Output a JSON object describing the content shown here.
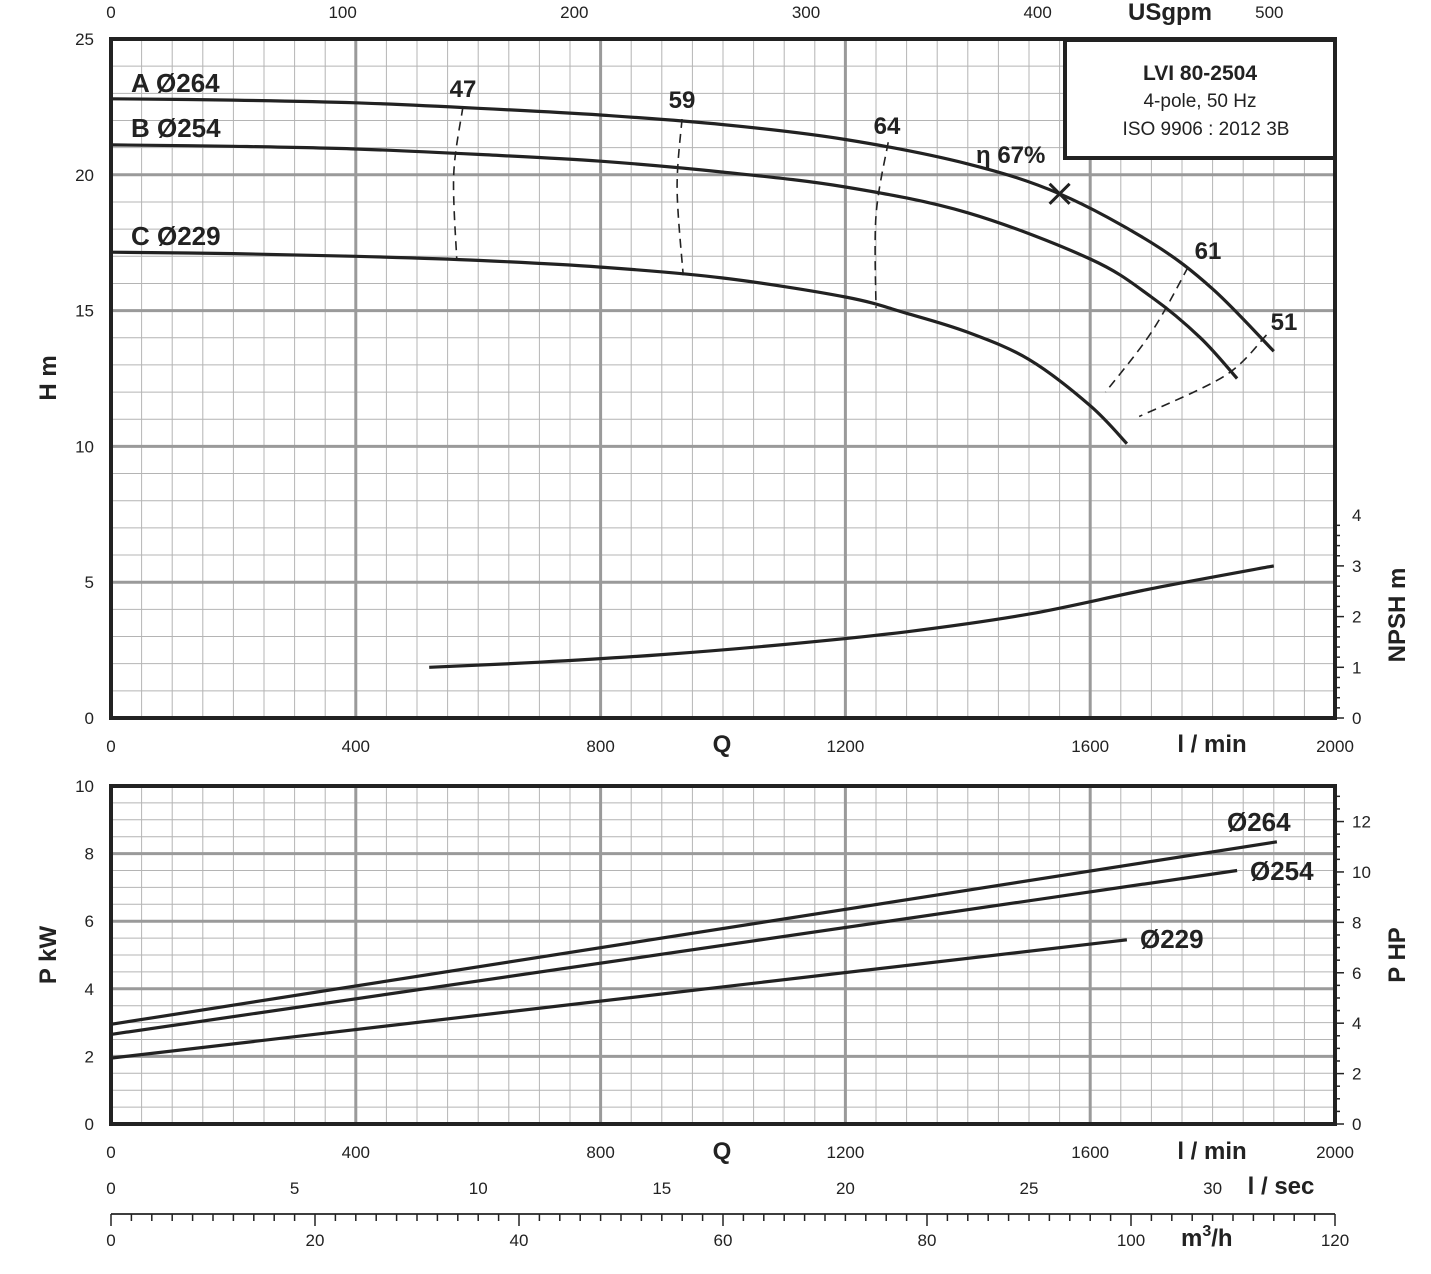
{
  "chart_data": [
    {
      "type": "line",
      "subplot": "head",
      "title_box": {
        "model": "LVI 80-2504",
        "line2": "4-pole, 50 Hz",
        "line3": "ISO 9906 : 2012 3B"
      },
      "xlabel": "Q",
      "xunit": "l / min",
      "xlim": [
        0,
        2000
      ],
      "xticks": [
        "0",
        "400",
        "800",
        "1200",
        "1600",
        "2000"
      ],
      "top_axis": {
        "unit": "USgpm",
        "ticks": [
          "0",
          "100",
          "200",
          "300",
          "400",
          "500"
        ],
        "values": [
          0,
          100,
          200,
          300,
          400,
          500
        ]
      },
      "ylabel": "H m",
      "ylim": [
        0,
        25
      ],
      "yticks": [
        "0",
        "5",
        "10",
        "15",
        "20",
        "25"
      ],
      "right_axis": {
        "label": "NPSH m",
        "ticks": [
          "0",
          "1",
          "2",
          "3",
          "4"
        ],
        "values": [
          0,
          1,
          2,
          3,
          4
        ]
      },
      "grid": true,
      "series": [
        {
          "name": "A Ø264",
          "x": [
            0,
            200,
            400,
            600,
            800,
            1000,
            1200,
            1400,
            1550,
            1700,
            1800,
            1900
          ],
          "y": [
            22.8,
            22.75,
            22.65,
            22.45,
            22.2,
            21.85,
            21.3,
            20.4,
            19.3,
            17.5,
            15.8,
            13.5
          ]
        },
        {
          "name": "B Ø254",
          "x": [
            0,
            200,
            400,
            600,
            800,
            1000,
            1200,
            1400,
            1600,
            1700,
            1780,
            1840
          ],
          "y": [
            21.1,
            21.05,
            20.95,
            20.75,
            20.5,
            20.1,
            19.55,
            18.6,
            16.9,
            15.5,
            14.0,
            12.5
          ]
        },
        {
          "name": "C Ø229",
          "x": [
            0,
            200,
            400,
            600,
            800,
            1000,
            1200,
            1300,
            1400,
            1500,
            1600,
            1660
          ],
          "y": [
            17.15,
            17.1,
            17.0,
            16.85,
            16.6,
            16.2,
            15.5,
            14.9,
            14.2,
            13.2,
            11.5,
            10.1
          ]
        },
        {
          "name": "NPSH",
          "axis": "right",
          "x": [
            520,
            700,
            900,
            1100,
            1300,
            1500,
            1700,
            1900
          ],
          "y": [
            1.0,
            1.1,
            1.25,
            1.45,
            1.7,
            2.05,
            2.55,
            3.0
          ]
        }
      ],
      "efficiency_labels": [
        "47",
        "59",
        "64",
        "61",
        "51"
      ],
      "efficiency_lines": [
        {
          "label": "47",
          "x": [
            575,
            560,
            565
          ],
          "y": [
            22.5,
            20.0,
            16.85
          ]
        },
        {
          "label": "59",
          "x": [
            933,
            925,
            935
          ],
          "y": [
            22.05,
            19.5,
            16.3
          ]
        },
        {
          "label": "64",
          "x": [
            1270,
            1250,
            1250
          ],
          "y": [
            21.2,
            18.5,
            15.1
          ]
        },
        {
          "label": "61",
          "x": [
            1760,
            1700,
            1625
          ],
          "y": [
            16.6,
            14.2,
            12.0
          ]
        },
        {
          "label": "51",
          "x": [
            1888,
            1820,
            1680
          ],
          "y": [
            14.1,
            12.6,
            11.1
          ]
        }
      ],
      "bep": {
        "label": "η 67%",
        "x": 1550,
        "y": 19.3
      }
    },
    {
      "type": "line",
      "subplot": "power",
      "xlabel": "Q",
      "xunit": "l / min",
      "xlim": [
        0,
        2000
      ],
      "xticks": [
        "0",
        "400",
        "800",
        "1200",
        "1600",
        "2000"
      ],
      "ylabel": "P kW",
      "ylim": [
        0,
        10
      ],
      "yticks": [
        "0",
        "2",
        "4",
        "6",
        "8",
        "10"
      ],
      "right_axis": {
        "label": "P HP",
        "ticks": [
          "0",
          "2",
          "4",
          "6",
          "8",
          "10",
          "12"
        ],
        "values": [
          0,
          2,
          4,
          6,
          8,
          10,
          12
        ]
      },
      "grid": true,
      "series": [
        {
          "name": "Ø264",
          "x": [
            0,
            1905
          ],
          "y": [
            2.95,
            8.35
          ]
        },
        {
          "name": "Ø254",
          "x": [
            0,
            1840
          ],
          "y": [
            2.65,
            7.5
          ]
        },
        {
          "name": "Ø229",
          "x": [
            0,
            1660
          ],
          "y": [
            1.95,
            5.45
          ]
        }
      ],
      "secondary_x_axes": [
        {
          "unit": "l / sec",
          "ticks": [
            "0",
            "5",
            "10",
            "15",
            "20",
            "25",
            "30"
          ],
          "values": [
            0,
            5,
            10,
            15,
            20,
            25,
            30
          ]
        },
        {
          "unit": "m³/h",
          "unit_base": "m",
          "unit_sup": "3",
          "unit_tail": "/h",
          "ticks": [
            "0",
            "20",
            "40",
            "60",
            "80",
            "100",
            "120"
          ],
          "values": [
            0,
            20,
            40,
            60,
            80,
            100,
            120
          ]
        }
      ]
    }
  ]
}
